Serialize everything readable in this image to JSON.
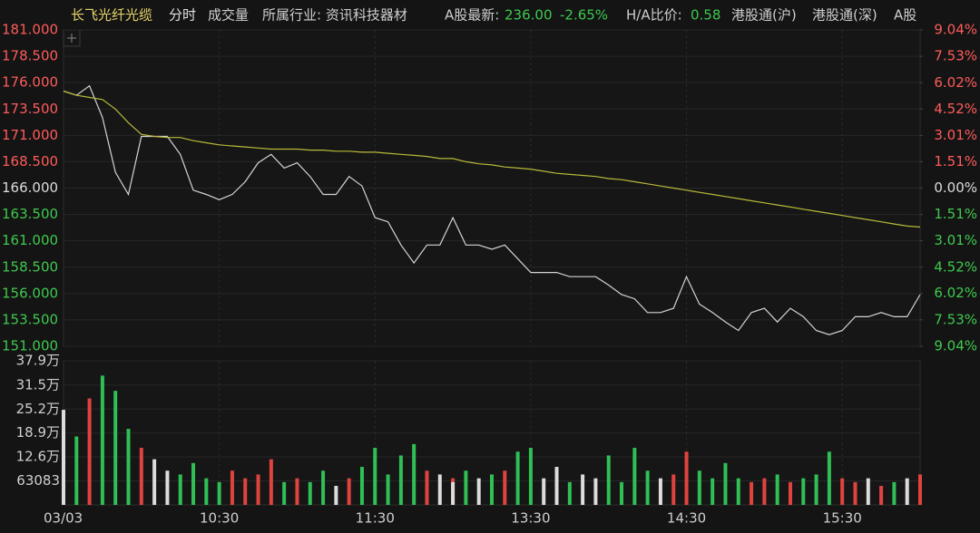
{
  "toolbar": {
    "name": "长飞光纤光缆",
    "tab_time": "分时",
    "tab_volume": "成交量",
    "industry": "所属行业: 资讯科技器材",
    "a_latest_label": "A股最新:",
    "a_latest_price": "236.00",
    "a_latest_change": "-2.65%",
    "ha_label": "H/A比价:",
    "ha_value": "0.58",
    "connect_sh": "港股通(沪)",
    "connect_sz": "港股通(深)",
    "a_share": "A股"
  },
  "chart_data": {
    "type": "intraday",
    "x": [
      "09:30",
      "09:35",
      "09:40",
      "09:45",
      "09:50",
      "09:55",
      "10:00",
      "10:05",
      "10:10",
      "10:15",
      "10:20",
      "10:25",
      "10:30",
      "10:35",
      "10:40",
      "10:45",
      "10:50",
      "10:55",
      "11:00",
      "11:05",
      "11:10",
      "11:15",
      "11:20",
      "11:25",
      "11:30",
      "11:35",
      "11:40",
      "11:45",
      "11:50",
      "11:55",
      "12:00",
      "13:00",
      "13:05",
      "13:10",
      "13:15",
      "13:20",
      "13:25",
      "13:30",
      "13:35",
      "13:40",
      "13:45",
      "13:50",
      "13:55",
      "14:00",
      "14:05",
      "14:10",
      "14:15",
      "14:20",
      "14:25",
      "14:30",
      "14:35",
      "14:40",
      "14:45",
      "14:50",
      "14:55",
      "15:00",
      "15:05",
      "15:10",
      "15:15",
      "15:20",
      "15:25",
      "15:30",
      "15:35",
      "15:40",
      "15:45",
      "15:50",
      "15:55",
      "16:00"
    ],
    "xticks": [
      {
        "value": "09:30",
        "label": "03/03"
      },
      "10:30",
      "11:30",
      "13:30",
      "14:30",
      "15:30"
    ],
    "series": [
      {
        "name": "price",
        "color": "#d4d4d4",
        "values": [
          175.2,
          174.8,
          175.7,
          172.7,
          167.5,
          165.4,
          170.9,
          170.9,
          170.9,
          169.2,
          165.8,
          165.4,
          164.9,
          165.4,
          166.6,
          168.4,
          169.2,
          167.9,
          168.4,
          167.1,
          165.4,
          165.4,
          167.1,
          166.2,
          163.2,
          162.8,
          160.6,
          158.9,
          160.6,
          160.6,
          163.2,
          163.2,
          160.6,
          160.6,
          160.2,
          160.6,
          159.3,
          158.0,
          158.0,
          158.0,
          157.6,
          157.6,
          157.6,
          156.8,
          155.9,
          155.5,
          154.2,
          154.2,
          154.6,
          157.6,
          155.0,
          154.2,
          153.3,
          152.5,
          154.2,
          154.6,
          153.3,
          154.6,
          153.8,
          152.5,
          152.1,
          152.5,
          153.8,
          153.8,
          154.2,
          153.8,
          153.8,
          155.9
        ]
      },
      {
        "name": "average",
        "color": "#b9b93a",
        "values": [
          175.2,
          174.8,
          174.6,
          174.4,
          173.5,
          172.2,
          171.1,
          170.9,
          170.8,
          170.8,
          170.5,
          170.3,
          170.1,
          170.0,
          169.9,
          169.8,
          169.7,
          169.7,
          169.7,
          169.6,
          169.6,
          169.5,
          169.5,
          169.4,
          169.4,
          169.3,
          169.2,
          169.1,
          169.0,
          168.8,
          168.8,
          168.8,
          168.5,
          168.3,
          168.2,
          168.0,
          167.9,
          167.8,
          167.6,
          167.4,
          167.3,
          167.2,
          167.1,
          166.9,
          166.8,
          166.6,
          166.4,
          166.2,
          166.0,
          165.8,
          165.6,
          165.4,
          165.2,
          165.0,
          164.8,
          164.6,
          164.4,
          164.2,
          164.0,
          163.8,
          163.6,
          163.4,
          163.2,
          163.0,
          162.8,
          162.6,
          162.4,
          162.3
        ]
      },
      {
        "name": "volume",
        "axis": "volume",
        "values": [
          250000,
          180000,
          280000,
          340000,
          300000,
          200000,
          150000,
          120000,
          90000,
          80000,
          110000,
          70000,
          60000,
          90000,
          70000,
          80000,
          120000,
          60000,
          70000,
          60000,
          90000,
          50000,
          70000,
          100000,
          150000,
          80000,
          130000,
          160000,
          90000,
          80000,
          70000,
          60000,
          90000,
          70000,
          80000,
          90000,
          140000,
          150000,
          70000,
          100000,
          60000,
          80000,
          70000,
          130000,
          60000,
          150000,
          90000,
          70000,
          80000,
          140000,
          90000,
          70000,
          110000,
          70000,
          60000,
          70000,
          80000,
          60000,
          70000,
          80000,
          140000,
          70000,
          60000,
          70000,
          50000,
          60000,
          70000,
          80000
        ]
      }
    ],
    "up_color": "#e0433f",
    "down_color": "#2fbf55",
    "flat_color": "#dcdcdc",
    "ylim": [
      151,
      181
    ],
    "yticks": [
      {
        "value": 181,
        "label": "181.000"
      },
      {
        "value": 178.5,
        "label": "178.500"
      },
      {
        "value": 176,
        "label": "176.000"
      },
      {
        "value": 173.5,
        "label": "173.500"
      },
      {
        "value": 171,
        "label": "171.000"
      },
      {
        "value": 168.5,
        "label": "168.500"
      },
      {
        "value": 166,
        "label": "166.000"
      },
      {
        "value": 163.5,
        "label": "163.500"
      },
      {
        "value": 161,
        "label": "161.000"
      },
      {
        "value": 158.5,
        "label": "158.500"
      },
      {
        "value": 156,
        "label": "156.000"
      },
      {
        "value": 153.5,
        "label": "153.500"
      },
      {
        "value": 151,
        "label": "151.000"
      }
    ],
    "y2lim": [
      -9.04,
      9.04
    ],
    "y2ticks": [
      {
        "value": 9.04,
        "label": "9.04%"
      },
      {
        "value": 7.53,
        "label": "7.53%"
      },
      {
        "value": 6.02,
        "label": "6.02%"
      },
      {
        "value": 4.52,
        "label": "4.52%"
      },
      {
        "value": 3.01,
        "label": "3.01%"
      },
      {
        "value": 1.51,
        "label": "1.51%"
      },
      {
        "value": 0,
        "label": "0.00%"
      },
      {
        "value": -1.51,
        "label": "1.51%"
      },
      {
        "value": -3.01,
        "label": "3.01%"
      },
      {
        "value": -4.52,
        "label": "4.52%"
      },
      {
        "value": -6.02,
        "label": "6.02%"
      },
      {
        "value": -7.53,
        "label": "7.53%"
      },
      {
        "value": -9.04,
        "label": "9.04%"
      }
    ],
    "vlim": [
      0,
      379000
    ],
    "vticks": [
      {
        "value": 379000,
        "label": "37.9万"
      },
      {
        "value": 315000,
        "label": "31.5万"
      },
      {
        "value": 252000,
        "label": "25.2万"
      },
      {
        "value": 189000,
        "label": "18.9万"
      },
      {
        "value": 126000,
        "label": "12.6万"
      },
      63083
    ],
    "grid": true
  }
}
